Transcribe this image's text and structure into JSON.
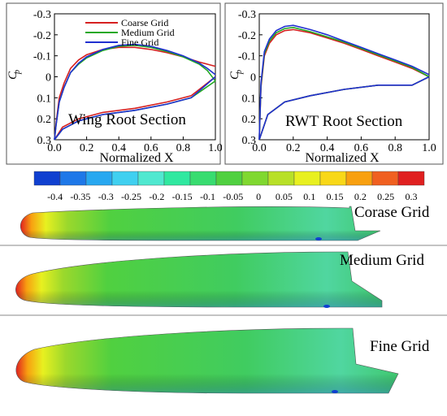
{
  "chart_data": [
    {
      "type": "line",
      "title": "",
      "annotation": "Wing Root Section",
      "xlabel": "Normalized X",
      "ylabel": "Cp",
      "ylabel_main": "C",
      "ylabel_sub": "p",
      "xlim": [
        0,
        1
      ],
      "ylim": [
        -0.3,
        0.3
      ],
      "y_inverted": true,
      "xticks": [
        "0.0",
        "0.2",
        "0.4",
        "0.6",
        "0.8",
        "1.0"
      ],
      "xtick_values": [
        0,
        0.2,
        0.4,
        0.6,
        0.8,
        1.0
      ],
      "yticks": [
        "-0.3",
        "-0.2",
        "-0.1",
        "0",
        "0.1",
        "0.2",
        "0.3"
      ],
      "ytick_values": [
        -0.3,
        -0.2,
        -0.1,
        0,
        0.1,
        0.2,
        0.3
      ],
      "series": [
        {
          "name": "Coarse Grid",
          "color": "#d62020",
          "upper": [
            [
              0.0,
              0.3
            ],
            [
              0.01,
              0.22
            ],
            [
              0.03,
              0.1
            ],
            [
              0.06,
              0.03
            ],
            [
              0.1,
              -0.04
            ],
            [
              0.15,
              -0.08
            ],
            [
              0.2,
              -0.105
            ],
            [
              0.3,
              -0.13
            ],
            [
              0.4,
              -0.14
            ],
            [
              0.5,
              -0.14
            ],
            [
              0.6,
              -0.13
            ],
            [
              0.7,
              -0.115
            ],
            [
              0.8,
              -0.095
            ],
            [
              0.9,
              -0.07
            ],
            [
              0.95,
              -0.06
            ],
            [
              1.0,
              -0.05
            ]
          ],
          "lower": [
            [
              0.0,
              0.3
            ],
            [
              0.05,
              0.24
            ],
            [
              0.15,
              0.2
            ],
            [
              0.3,
              0.17
            ],
            [
              0.5,
              0.15
            ],
            [
              0.7,
              0.12
            ],
            [
              0.85,
              0.09
            ],
            [
              1.0,
              0.0
            ]
          ]
        },
        {
          "name": "Medium Grid",
          "color": "#22a822",
          "upper": [
            [
              0.0,
              0.3
            ],
            [
              0.01,
              0.23
            ],
            [
              0.03,
              0.12
            ],
            [
              0.06,
              0.05
            ],
            [
              0.1,
              -0.02
            ],
            [
              0.15,
              -0.06
            ],
            [
              0.2,
              -0.09
            ],
            [
              0.3,
              -0.125
            ],
            [
              0.4,
              -0.145
            ],
            [
              0.5,
              -0.15
            ],
            [
              0.6,
              -0.14
            ],
            [
              0.7,
              -0.12
            ],
            [
              0.8,
              -0.095
            ],
            [
              0.9,
              -0.06
            ],
            [
              0.95,
              -0.03
            ],
            [
              1.0,
              0.02
            ]
          ],
          "lower": [
            [
              0.0,
              0.3
            ],
            [
              0.05,
              0.25
            ],
            [
              0.15,
              0.21
            ],
            [
              0.3,
              0.18
            ],
            [
              0.5,
              0.16
            ],
            [
              0.7,
              0.13
            ],
            [
              0.85,
              0.1
            ],
            [
              1.0,
              0.02
            ]
          ]
        },
        {
          "name": "Fine Grid",
          "color": "#2030d0",
          "upper": [
            [
              0.0,
              0.3
            ],
            [
              0.01,
              0.23
            ],
            [
              0.03,
              0.12
            ],
            [
              0.06,
              0.05
            ],
            [
              0.1,
              -0.02
            ],
            [
              0.15,
              -0.065
            ],
            [
              0.2,
              -0.095
            ],
            [
              0.3,
              -0.13
            ],
            [
              0.4,
              -0.15
            ],
            [
              0.5,
              -0.155
            ],
            [
              0.6,
              -0.145
            ],
            [
              0.7,
              -0.125
            ],
            [
              0.8,
              -0.1
            ],
            [
              0.9,
              -0.065
            ],
            [
              0.95,
              -0.04
            ],
            [
              1.0,
              -0.01
            ]
          ],
          "lower": [
            [
              0.0,
              0.3
            ],
            [
              0.05,
              0.25
            ],
            [
              0.15,
              0.21
            ],
            [
              0.3,
              0.18
            ],
            [
              0.5,
              0.16
            ],
            [
              0.7,
              0.13
            ],
            [
              0.85,
              0.1
            ],
            [
              1.0,
              0.0
            ]
          ]
        }
      ]
    },
    {
      "type": "line",
      "title": "",
      "annotation": "RWT Root Section",
      "xlabel": "Normalized X",
      "ylabel": "Cp",
      "xlim": [
        0,
        1
      ],
      "ylim": [
        -0.3,
        0.3
      ],
      "y_inverted": true,
      "xticks": [
        "0.0",
        "0.2",
        "0.4",
        "0.6",
        "0.8",
        "1.0"
      ],
      "xtick_values": [
        0,
        0.2,
        0.4,
        0.6,
        0.8,
        1.0
      ],
      "yticks": [
        "-0.3",
        "-0.2",
        "-0.1",
        "0",
        "0.1",
        "0.2",
        "0.3"
      ],
      "ytick_values": [
        -0.3,
        -0.2,
        -0.1,
        0,
        0.1,
        0.2,
        0.3
      ],
      "series": [
        {
          "name": "Coarse Grid",
          "color": "#d62020",
          "upper": [
            [
              0.0,
              0.3
            ],
            [
              0.01,
              0.05
            ],
            [
              0.03,
              -0.1
            ],
            [
              0.06,
              -0.16
            ],
            [
              0.1,
              -0.2
            ],
            [
              0.15,
              -0.22
            ],
            [
              0.2,
              -0.225
            ],
            [
              0.3,
              -0.21
            ],
            [
              0.4,
              -0.185
            ],
            [
              0.5,
              -0.16
            ],
            [
              0.6,
              -0.13
            ],
            [
              0.7,
              -0.1
            ],
            [
              0.8,
              -0.07
            ],
            [
              0.9,
              -0.04
            ],
            [
              1.0,
              0.0
            ]
          ],
          "lower": [
            [
              0.0,
              0.3
            ],
            [
              0.05,
              0.18
            ],
            [
              0.15,
              0.12
            ],
            [
              0.3,
              0.09
            ],
            [
              0.5,
              0.06
            ],
            [
              0.7,
              0.04
            ],
            [
              0.9,
              0.04
            ],
            [
              1.0,
              0.0
            ]
          ]
        },
        {
          "name": "Medium Grid",
          "color": "#22a822",
          "upper": [
            [
              0.0,
              0.3
            ],
            [
              0.01,
              0.04
            ],
            [
              0.03,
              -0.11
            ],
            [
              0.06,
              -0.17
            ],
            [
              0.1,
              -0.21
            ],
            [
              0.15,
              -0.23
            ],
            [
              0.2,
              -0.235
            ],
            [
              0.3,
              -0.215
            ],
            [
              0.4,
              -0.19
            ],
            [
              0.5,
              -0.165
            ],
            [
              0.6,
              -0.135
            ],
            [
              0.7,
              -0.105
            ],
            [
              0.8,
              -0.075
            ],
            [
              0.9,
              -0.045
            ],
            [
              1.0,
              0.0
            ]
          ],
          "lower": [
            [
              0.0,
              0.3
            ],
            [
              0.05,
              0.18
            ],
            [
              0.15,
              0.12
            ],
            [
              0.3,
              0.09
            ],
            [
              0.5,
              0.06
            ],
            [
              0.7,
              0.04
            ],
            [
              0.9,
              0.04
            ],
            [
              1.0,
              0.0
            ]
          ]
        },
        {
          "name": "Fine Grid",
          "color": "#2030d0",
          "upper": [
            [
              0.0,
              0.3
            ],
            [
              0.01,
              0.03
            ],
            [
              0.03,
              -0.12
            ],
            [
              0.06,
              -0.18
            ],
            [
              0.1,
              -0.22
            ],
            [
              0.15,
              -0.24
            ],
            [
              0.2,
              -0.245
            ],
            [
              0.3,
              -0.225
            ],
            [
              0.4,
              -0.2
            ],
            [
              0.5,
              -0.17
            ],
            [
              0.6,
              -0.14
            ],
            [
              0.7,
              -0.11
            ],
            [
              0.8,
              -0.08
            ],
            [
              0.9,
              -0.05
            ],
            [
              1.0,
              -0.01
            ]
          ],
          "lower": [
            [
              0.0,
              0.3
            ],
            [
              0.05,
              0.18
            ],
            [
              0.15,
              0.12
            ],
            [
              0.3,
              0.09
            ],
            [
              0.5,
              0.06
            ],
            [
              0.7,
              0.04
            ],
            [
              0.9,
              0.04
            ],
            [
              1.0,
              0.0
            ]
          ]
        }
      ]
    },
    {
      "type": "heatmap",
      "title": "",
      "colorbar": {
        "ticks": [
          "-0.4",
          "-0.35",
          "-0.3",
          "-0.25",
          "-0.2",
          "-0.15",
          "-0.1",
          "-0.05",
          "0",
          "0.05",
          "0.1",
          "0.15",
          "0.2",
          "0.25",
          "0.3"
        ],
        "colors": [
          "#1040d0",
          "#1e78e8",
          "#28a8f0",
          "#40d0f0",
          "#50e8d0",
          "#30e8a0",
          "#38dc70",
          "#50d040",
          "#80d830",
          "#b8e028",
          "#e8f020",
          "#f8d818",
          "#f8a010",
          "#f06020",
          "#e02020"
        ]
      },
      "panels": [
        {
          "label": "Corase Grid"
        },
        {
          "label": "Medium Grid"
        },
        {
          "label": "Fine Grid"
        }
      ]
    }
  ]
}
